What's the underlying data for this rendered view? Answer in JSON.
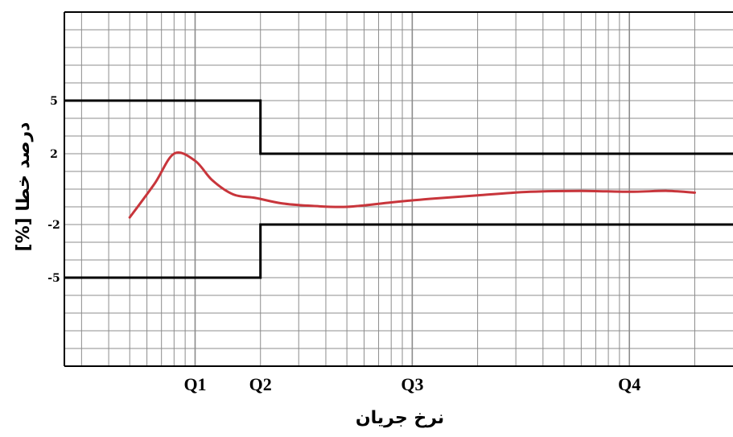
{
  "chart_data": {
    "type": "line",
    "title": "",
    "xlabel": "نرخ جریان",
    "ylabel": "[%]  درصد خطا",
    "x_scale": "log",
    "grid": true,
    "y_ticks": [
      5,
      2,
      -2,
      -5
    ],
    "x_tick_labels": [
      "Q1",
      "Q2",
      "Q3",
      "Q4"
    ],
    "x_tick_positions": [
      0.1,
      0.2,
      1,
      10
    ],
    "xlim": [
      0.025,
      30
    ],
    "ylim": [
      -10,
      10
    ],
    "upper_limit": {
      "x": [
        0.025,
        0.2,
        0.2,
        30
      ],
      "y": [
        5,
        5,
        2,
        2
      ]
    },
    "lower_limit": {
      "x": [
        0.025,
        0.2,
        0.2,
        30
      ],
      "y": [
        -5,
        -5,
        -2,
        -2
      ]
    },
    "series": [
      {
        "color": "#c8353b",
        "x": [
          0.05,
          0.065,
          0.08,
          0.1,
          0.12,
          0.15,
          0.19,
          0.25,
          0.35,
          0.5,
          0.8,
          1.2,
          2,
          3.5,
          6,
          10,
          15,
          20
        ],
        "y": [
          -1.6,
          0.3,
          2.0,
          1.6,
          0.5,
          -0.3,
          -0.5,
          -0.8,
          -0.95,
          -1.0,
          -0.75,
          -0.55,
          -0.35,
          -0.15,
          -0.1,
          -0.15,
          -0.1,
          -0.2
        ]
      }
    ]
  },
  "colors": {
    "curve": "#c8353b",
    "limit": "#000000",
    "grid": "#8c8c8c"
  }
}
